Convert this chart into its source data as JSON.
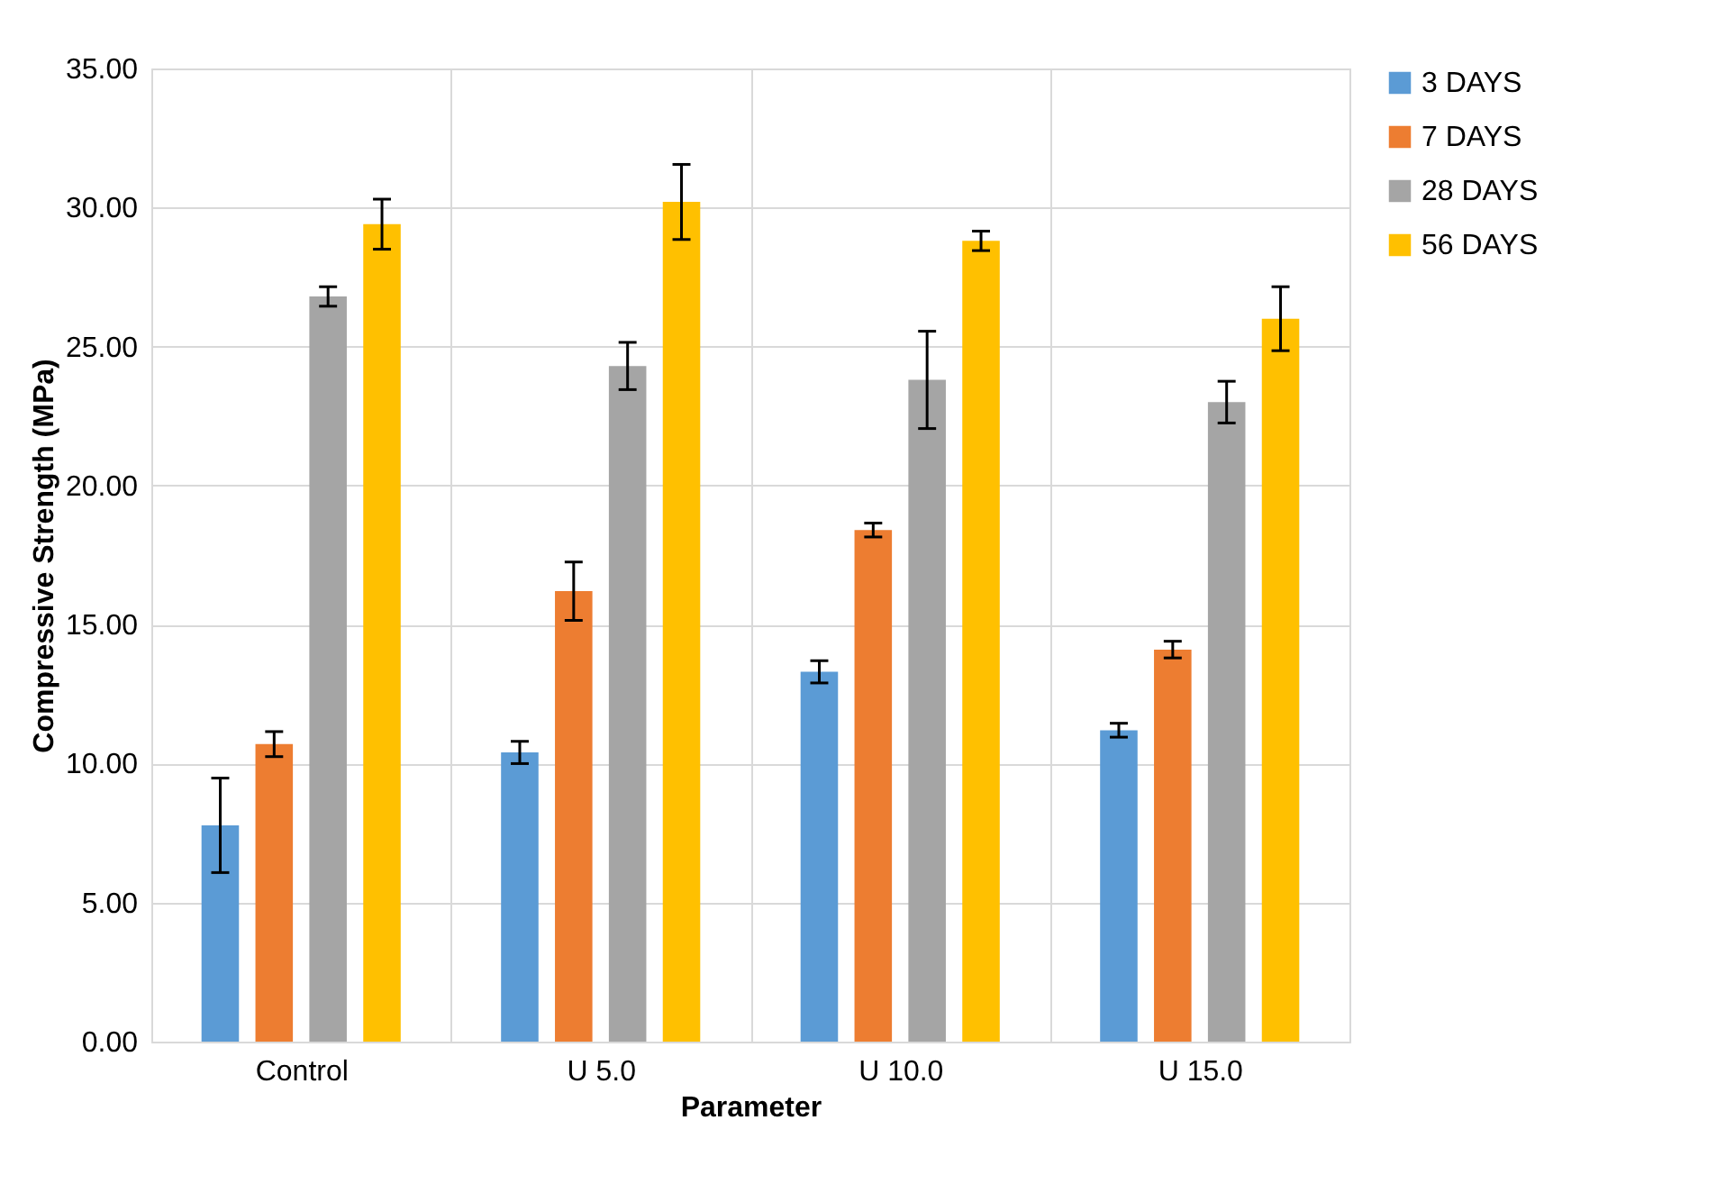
{
  "chart_data": {
    "type": "bar",
    "xlabel": "Parameter",
    "ylabel": "Compressive Strength (MPa)",
    "categories": [
      "Control",
      "U 5.0",
      "U 10.0",
      "U 15.0"
    ],
    "series": [
      {
        "name": "3 DAYS",
        "color": "#5b9bd5",
        "values": [
          7.78,
          10.4,
          13.3,
          11.2
        ],
        "errors": [
          1.7,
          0.4,
          0.4,
          0.25
        ]
      },
      {
        "name": "7 DAYS",
        "color": "#ed7d31",
        "values": [
          10.7,
          16.2,
          18.4,
          14.1
        ],
        "errors": [
          0.45,
          1.05,
          0.25,
          0.3
        ]
      },
      {
        "name": "28 DAYS",
        "color": "#a5a5a5",
        "values": [
          26.8,
          24.3,
          23.8,
          23.0
        ],
        "errors": [
          0.35,
          0.85,
          1.75,
          0.75
        ]
      },
      {
        "name": "56 DAYS",
        "color": "#ffc000",
        "values": [
          29.4,
          30.2,
          28.8,
          26.0
        ],
        "errors": [
          0.9,
          1.35,
          0.35,
          1.15
        ]
      }
    ],
    "ylim": [
      0,
      35
    ],
    "yticks": [
      {
        "value": 0,
        "label": "0.00"
      },
      {
        "value": 5,
        "label": "5.00"
      },
      {
        "value": 10,
        "label": "10.00"
      },
      {
        "value": 15,
        "label": "15.00"
      },
      {
        "value": 20,
        "label": "20.00"
      },
      {
        "value": 25,
        "label": "25.00"
      },
      {
        "value": 30,
        "label": "30.00"
      },
      {
        "value": 35,
        "label": "35.00"
      }
    ],
    "grid": true,
    "legend": "right"
  }
}
